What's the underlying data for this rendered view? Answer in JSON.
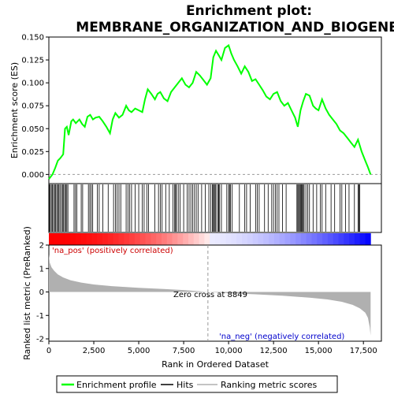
{
  "chart_data": {
    "type": "line",
    "title_line1": "Enrichment plot:",
    "title_line2": "MEMBRANE_ORGANIZATION_AND_BIOGENESIS",
    "es_ylabel": "Enrichment score (ES)",
    "metric_ylabel": "Ranked list metric (PreRanked)",
    "xlabel": "Rank in Ordered Dataset",
    "xlim": [
      0,
      18500
    ],
    "es_ylim": [
      -0.01,
      0.15
    ],
    "metric_ylim": [
      -2.1,
      2.0
    ],
    "x_ticks": [
      0,
      2500,
      5000,
      7500,
      10000,
      12500,
      15000,
      17500
    ],
    "x_tick_labels": [
      "0",
      "2,500",
      "5,000",
      "7,500",
      "10,000",
      "12,500",
      "15,000",
      "17,500"
    ],
    "es_ticks": [
      0.0,
      0.025,
      0.05,
      0.075,
      0.1,
      0.125,
      0.15
    ],
    "es_tick_labels": [
      "0.000",
      "0.025",
      "0.050",
      "0.075",
      "0.100",
      "0.125",
      "0.150"
    ],
    "metric_ticks": [
      -2,
      -1,
      0,
      1,
      2
    ],
    "metric_tick_labels": [
      "-2",
      "-1",
      "0",
      "1",
      "2"
    ],
    "zero_cross_rank": 8849,
    "zero_cross_label": "Zero cross at 8849",
    "pos_label": "'na_pos' (positively correlated)",
    "neg_label": "'na_neg' (negatively correlated)",
    "total_rank": 17900,
    "enrichment_profile": {
      "name": "Enrichment profile",
      "color": "#00ff00",
      "x": [
        0,
        200,
        350,
        500,
        650,
        800,
        900,
        1000,
        1100,
        1250,
        1350,
        1500,
        1700,
        1850,
        2000,
        2150,
        2300,
        2450,
        2600,
        2800,
        3000,
        3200,
        3400,
        3550,
        3700,
        3900,
        4100,
        4300,
        4450,
        4600,
        4800,
        5000,
        5200,
        5350,
        5500,
        5700,
        5900,
        6050,
        6200,
        6400,
        6600,
        6800,
        7000,
        7200,
        7400,
        7600,
        7800,
        8000,
        8200,
        8400,
        8600,
        8800,
        9000,
        9150,
        9300,
        9450,
        9600,
        9800,
        10000,
        10150,
        10300,
        10500,
        10700,
        10900,
        11100,
        11300,
        11500,
        11700,
        11900,
        12100,
        12300,
        12500,
        12700,
        12900,
        13100,
        13300,
        13500,
        13700,
        13850,
        14000,
        14150,
        14300,
        14500,
        14700,
        14850,
        15000,
        15200,
        15400,
        15600,
        15800,
        16000,
        16200,
        16400,
        16600,
        16800,
        17000,
        17200,
        17400,
        17600,
        17750,
        17900
      ],
      "y": [
        -0.005,
        0.0,
        0.007,
        0.015,
        0.018,
        0.022,
        0.05,
        0.052,
        0.043,
        0.058,
        0.06,
        0.056,
        0.06,
        0.055,
        0.052,
        0.063,
        0.065,
        0.06,
        0.062,
        0.063,
        0.058,
        0.052,
        0.045,
        0.06,
        0.067,
        0.062,
        0.065,
        0.075,
        0.07,
        0.068,
        0.072,
        0.07,
        0.068,
        0.082,
        0.093,
        0.088,
        0.082,
        0.088,
        0.09,
        0.083,
        0.08,
        0.09,
        0.095,
        0.1,
        0.105,
        0.098,
        0.095,
        0.1,
        0.112,
        0.108,
        0.103,
        0.098,
        0.105,
        0.128,
        0.135,
        0.13,
        0.125,
        0.138,
        0.141,
        0.132,
        0.125,
        0.118,
        0.11,
        0.118,
        0.112,
        0.102,
        0.104,
        0.098,
        0.092,
        0.085,
        0.082,
        0.088,
        0.09,
        0.08,
        0.075,
        0.078,
        0.07,
        0.062,
        0.052,
        0.07,
        0.08,
        0.088,
        0.086,
        0.075,
        0.072,
        0.07,
        0.082,
        0.072,
        0.065,
        0.06,
        0.055,
        0.048,
        0.045,
        0.04,
        0.035,
        0.03,
        0.038,
        0.025,
        0.015,
        0.008,
        0.0
      ]
    },
    "hits_name": "Hits",
    "hit_ranks": [
      30,
      80,
      140,
      200,
      260,
      320,
      380,
      440,
      500,
      560,
      620,
      700,
      760,
      820,
      880,
      940,
      1000,
      1060,
      1400,
      1480,
      1560,
      1800,
      1880,
      2200,
      2280,
      2360,
      2440,
      2700,
      2800,
      3000,
      3300,
      3600,
      3700,
      3800,
      3900,
      4000,
      4300,
      4400,
      4500,
      4600,
      4800,
      5000,
      5200,
      5300,
      5450,
      5550,
      5900,
      6100,
      6200,
      6300,
      6500,
      6700,
      6900,
      7000,
      7050,
      7100,
      7200,
      7300,
      7500,
      7700,
      7800,
      7900,
      8000,
      8100,
      8200,
      8300,
      8500,
      8700,
      8900,
      9000,
      9100,
      9150,
      9200,
      9250,
      9300,
      9400,
      9450,
      9500,
      9600,
      9900,
      10000,
      10050,
      10100,
      10200,
      10600,
      10900,
      11000,
      11200,
      11500,
      11600,
      11700,
      12000,
      12200,
      12400,
      12500,
      12600,
      12700,
      12800,
      13000,
      13200,
      13800,
      13850,
      13900,
      13950,
      14000,
      14050,
      14100,
      14150,
      14200,
      14300,
      14400,
      14500,
      14700,
      14900,
      15100,
      15200,
      15400,
      15700,
      15900,
      16200,
      16300,
      16500,
      16700,
      17000,
      17200,
      17250,
      17300
    ],
    "ranking_metric": {
      "name": "Ranking metric scores",
      "color": "#b0b0b0",
      "x": [
        0,
        50,
        150,
        300,
        500,
        800,
        1200,
        1800,
        2500,
        3500,
        5000,
        6500,
        7500,
        8849,
        10000,
        11500,
        13000,
        14500,
        15500,
        16300,
        16900,
        17300,
        17600,
        17750,
        17850,
        17900
      ],
      "y": [
        1.6,
        1.25,
        1.05,
        0.9,
        0.75,
        0.62,
        0.5,
        0.4,
        0.32,
        0.25,
        0.18,
        0.12,
        0.08,
        0.0,
        -0.05,
        -0.1,
        -0.16,
        -0.24,
        -0.32,
        -0.42,
        -0.55,
        -0.7,
        -0.88,
        -1.1,
        -1.5,
        -1.85
      ]
    }
  },
  "legend": {
    "items": [
      {
        "label": "Enrichment profile",
        "color": "#00ff00"
      },
      {
        "label": "Hits",
        "color": "#000000"
      },
      {
        "label": "Ranking metric scores",
        "color": "#b0b0b0"
      }
    ]
  }
}
